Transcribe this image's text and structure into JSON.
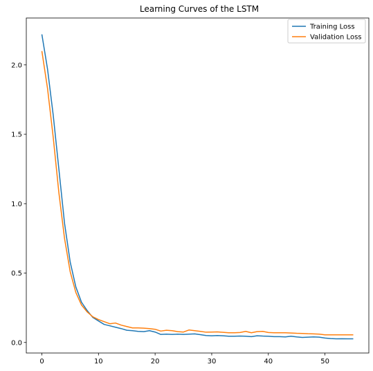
{
  "chart_data": {
    "type": "line",
    "title": "Learning Curves of the LSTM",
    "xlabel": "",
    "ylabel": "",
    "xlim": [
      -2.75,
      57.75
    ],
    "ylim": [
      -0.076,
      2.338
    ],
    "xticks": [
      0,
      10,
      20,
      30,
      40,
      50
    ],
    "yticks": [
      0.0,
      0.5,
      1.0,
      1.5,
      2.0
    ],
    "xtick_labels": [
      "0",
      "10",
      "20",
      "30",
      "40",
      "50"
    ],
    "ytick_labels": [
      "0.0",
      "0.5",
      "1.0",
      "1.5",
      "2.0"
    ],
    "grid": false,
    "legend_position": "top-right",
    "x": [
      0,
      1,
      2,
      3,
      4,
      5,
      6,
      7,
      8,
      9,
      10,
      11,
      12,
      13,
      14,
      15,
      16,
      17,
      18,
      19,
      20,
      21,
      22,
      23,
      24,
      25,
      26,
      27,
      28,
      29,
      30,
      31,
      32,
      33,
      34,
      35,
      36,
      37,
      38,
      39,
      40,
      41,
      42,
      43,
      44,
      45,
      46,
      47,
      48,
      49,
      50,
      51,
      52,
      53,
      54,
      55
    ],
    "series": [
      {
        "name": "Training Loss",
        "color": "#1f77b4",
        "values": [
          2.22,
          1.97,
          1.64,
          1.25,
          0.86,
          0.58,
          0.4,
          0.29,
          0.23,
          0.18,
          0.155,
          0.13,
          0.12,
          0.11,
          0.1,
          0.088,
          0.085,
          0.08,
          0.078,
          0.085,
          0.075,
          0.058,
          0.06,
          0.058,
          0.06,
          0.058,
          0.06,
          0.062,
          0.056,
          0.05,
          0.048,
          0.05,
          0.048,
          0.045,
          0.045,
          0.046,
          0.045,
          0.042,
          0.048,
          0.046,
          0.045,
          0.042,
          0.042,
          0.04,
          0.045,
          0.04,
          0.036,
          0.038,
          0.04,
          0.038,
          0.032,
          0.028,
          0.026,
          0.027,
          0.026,
          0.026
        ]
      },
      {
        "name": "Validation Loss",
        "color": "#ff7f0e",
        "values": [
          2.1,
          1.83,
          1.48,
          1.08,
          0.75,
          0.51,
          0.36,
          0.27,
          0.22,
          0.185,
          0.165,
          0.15,
          0.135,
          0.14,
          0.125,
          0.115,
          0.105,
          0.105,
          0.103,
          0.1,
          0.095,
          0.082,
          0.088,
          0.085,
          0.078,
          0.075,
          0.09,
          0.085,
          0.08,
          0.074,
          0.075,
          0.076,
          0.073,
          0.07,
          0.07,
          0.072,
          0.08,
          0.07,
          0.078,
          0.08,
          0.072,
          0.07,
          0.07,
          0.07,
          0.068,
          0.066,
          0.065,
          0.063,
          0.062,
          0.06,
          0.055,
          0.055,
          0.055,
          0.055,
          0.055,
          0.055
        ]
      }
    ]
  }
}
